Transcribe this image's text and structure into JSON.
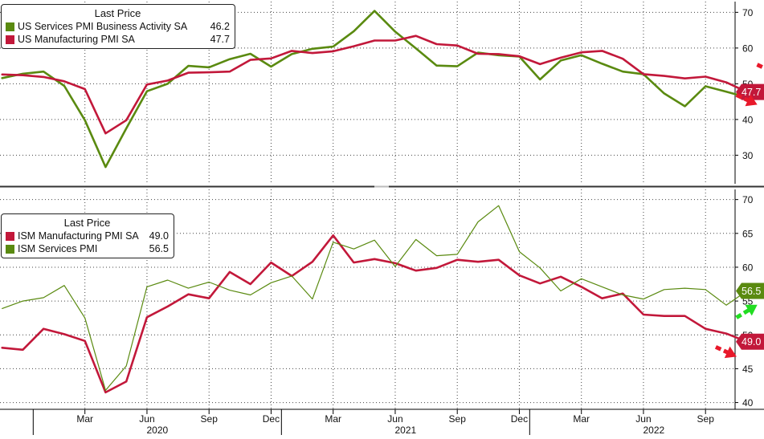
{
  "colors": {
    "manufacturing": "#c2183a",
    "services": "#5a8a10",
    "arrow_red": "#e8182a",
    "arrow_green": "#22dd22",
    "grid": "#444444",
    "divider": "#333333"
  },
  "chart_data": [
    {
      "type": "line",
      "legend_title": "Last Price",
      "ylim": [
        22,
        73
      ],
      "yticks": [
        "30",
        "40",
        "50",
        "60",
        "70"
      ],
      "grid": true,
      "legend_position": "top-left",
      "series": [
        {
          "name": "US Services PMI Business Activity SA",
          "last": "46.2",
          "color": "#5a8a10",
          "x": [
            "2019-11",
            "2019-12",
            "2020-01",
            "2020-02",
            "2020-03",
            "2020-04",
            "2020-05",
            "2020-06",
            "2020-07",
            "2020-08",
            "2020-09",
            "2020-10",
            "2020-11",
            "2020-12",
            "2021-01",
            "2021-02",
            "2021-03",
            "2021-04",
            "2021-05",
            "2021-06",
            "2021-07",
            "2021-08",
            "2021-09",
            "2021-10",
            "2021-11",
            "2021-12",
            "2022-01",
            "2022-02",
            "2022-03",
            "2022-04",
            "2022-05",
            "2022-06",
            "2022-07",
            "2022-08",
            "2022-09",
            "2022-10",
            "2022-11"
          ],
          "values": [
            51.6,
            52.8,
            53.4,
            49.4,
            39.8,
            26.7,
            37.5,
            47.9,
            50.0,
            55.0,
            54.6,
            56.9,
            58.4,
            54.8,
            58.3,
            59.8,
            60.4,
            64.7,
            70.4,
            64.6,
            59.9,
            55.1,
            54.9,
            58.7,
            58.0,
            57.6,
            51.2,
            56.5,
            58.0,
            55.6,
            53.4,
            52.7,
            47.3,
            43.7,
            49.3,
            47.8,
            46.2
          ]
        },
        {
          "name": "US Manufacturing PMI SA",
          "last": "47.7",
          "color": "#c2183a",
          "x": [
            "2019-11",
            "2019-12",
            "2020-01",
            "2020-02",
            "2020-03",
            "2020-04",
            "2020-05",
            "2020-06",
            "2020-07",
            "2020-08",
            "2020-09",
            "2020-10",
            "2020-11",
            "2020-12",
            "2021-01",
            "2021-02",
            "2021-03",
            "2021-04",
            "2021-05",
            "2021-06",
            "2021-07",
            "2021-08",
            "2021-09",
            "2021-10",
            "2021-11",
            "2021-12",
            "2022-01",
            "2022-02",
            "2022-03",
            "2022-04",
            "2022-05",
            "2022-06",
            "2022-07",
            "2022-08",
            "2022-09",
            "2022-10",
            "2022-11"
          ],
          "values": [
            52.6,
            52.4,
            51.9,
            50.7,
            48.5,
            36.1,
            39.8,
            49.8,
            50.9,
            53.1,
            53.2,
            53.4,
            56.7,
            57.1,
            59.2,
            58.6,
            59.1,
            60.5,
            62.1,
            62.1,
            63.4,
            61.1,
            60.7,
            58.4,
            58.3,
            57.7,
            55.5,
            57.3,
            58.8,
            59.2,
            57.0,
            52.7,
            52.2,
            51.5,
            52.0,
            50.4,
            47.7
          ]
        }
      ],
      "annotations": [
        {
          "type": "arrow",
          "color": "red",
          "direction": "down-right",
          "x": "2022-12",
          "y": 54
        },
        {
          "type": "arrow",
          "color": "red",
          "direction": "down-right",
          "x": "2022-11",
          "y": 45.5
        }
      ]
    },
    {
      "type": "line",
      "legend_title": "Last Price",
      "ylim": [
        39,
        71.5
      ],
      "yticks": [
        "40",
        "45",
        "50",
        "55",
        "60",
        "65",
        "70"
      ],
      "grid": true,
      "legend_position": "left",
      "xlabels": [
        "Mar",
        "Jun",
        "Sep",
        "Dec",
        "Mar",
        "Jun",
        "Sep",
        "Dec",
        "Mar",
        "Jun",
        "Sep"
      ],
      "years": [
        "2020",
        "2021",
        "2022"
      ],
      "series": [
        {
          "name": "ISM Manufacturing PMI SA",
          "last": "49.0",
          "color": "#c2183a",
          "x": [
            "2019-11",
            "2019-12",
            "2020-01",
            "2020-02",
            "2020-03",
            "2020-04",
            "2020-05",
            "2020-06",
            "2020-07",
            "2020-08",
            "2020-09",
            "2020-10",
            "2020-11",
            "2020-12",
            "2021-01",
            "2021-02",
            "2021-03",
            "2021-04",
            "2021-05",
            "2021-06",
            "2021-07",
            "2021-08",
            "2021-09",
            "2021-10",
            "2021-11",
            "2021-12",
            "2022-01",
            "2022-02",
            "2022-03",
            "2022-04",
            "2022-05",
            "2022-06",
            "2022-07",
            "2022-08",
            "2022-09",
            "2022-10",
            "2022-11"
          ],
          "values": [
            48.1,
            47.8,
            50.9,
            50.1,
            49.1,
            41.5,
            43.1,
            52.6,
            54.2,
            56.0,
            55.4,
            59.3,
            57.5,
            60.7,
            58.7,
            60.8,
            64.7,
            60.7,
            61.2,
            60.6,
            59.5,
            59.9,
            61.1,
            60.8,
            61.1,
            58.8,
            57.6,
            58.6,
            57.1,
            55.4,
            56.1,
            53.0,
            52.8,
            52.8,
            50.9,
            50.2,
            49.0
          ]
        },
        {
          "name": "ISM Services PMI",
          "last": "56.5",
          "color": "#5a8a10",
          "x": [
            "2019-11",
            "2019-12",
            "2020-01",
            "2020-02",
            "2020-03",
            "2020-04",
            "2020-05",
            "2020-06",
            "2020-07",
            "2020-08",
            "2020-09",
            "2020-10",
            "2020-11",
            "2020-12",
            "2021-01",
            "2021-02",
            "2021-03",
            "2021-04",
            "2021-05",
            "2021-06",
            "2021-07",
            "2021-08",
            "2021-09",
            "2021-10",
            "2021-11",
            "2021-12",
            "2022-01",
            "2022-02",
            "2022-03",
            "2022-04",
            "2022-05",
            "2022-06",
            "2022-07",
            "2022-08",
            "2022-09",
            "2022-10",
            "2022-11"
          ],
          "values": [
            53.9,
            55.0,
            55.5,
            57.3,
            52.5,
            41.8,
            45.4,
            57.1,
            58.1,
            56.9,
            57.8,
            56.6,
            55.9,
            57.7,
            58.7,
            55.3,
            63.7,
            62.7,
            64.0,
            60.1,
            64.1,
            61.7,
            61.9,
            66.7,
            69.1,
            62.3,
            59.9,
            56.5,
            58.3,
            57.1,
            55.9,
            55.3,
            56.7,
            56.9,
            56.7,
            54.4,
            56.5
          ]
        }
      ],
      "annotations": [
        {
          "type": "arrow",
          "color": "green",
          "direction": "up-right",
          "x": "2022-11",
          "y": 53.5
        },
        {
          "type": "arrow",
          "color": "red",
          "direction": "down-right",
          "x": "2022-10",
          "y": 47.5
        }
      ]
    }
  ]
}
